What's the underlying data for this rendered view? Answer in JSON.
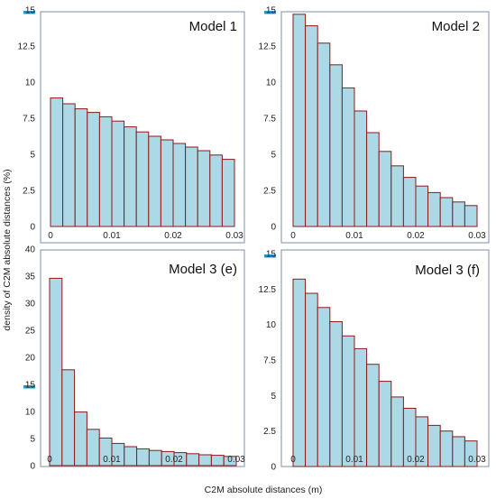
{
  "figure": {
    "ylabel": "density of C2M absolute distances (%)",
    "xlabel": "C2M absolute distances (m)"
  },
  "colors": {
    "bar_fill": "#add8e6",
    "bar_edge": "#8b1a1a",
    "frame": "#7f8fa6",
    "highlight_tick": "#1e9bd7"
  },
  "chart_data": [
    {
      "type": "bar",
      "title": "Model 1",
      "xlim": [
        0,
        0.03
      ],
      "ylim": [
        0,
        15
      ],
      "bin_edges": [
        0,
        0.002,
        0.004,
        0.006,
        0.008,
        0.01,
        0.012,
        0.014,
        0.016,
        0.018,
        0.02,
        0.022,
        0.024,
        0.026,
        0.028,
        0.03
      ],
      "values": [
        8.9,
        8.5,
        8.15,
        7.9,
        7.6,
        7.3,
        6.9,
        6.55,
        6.25,
        6.0,
        5.75,
        5.5,
        5.25,
        4.95,
        4.65
      ],
      "xticks": [
        "0",
        "0.01",
        "0.02",
        "0.03"
      ],
      "yticks": [
        "0",
        "2.5",
        "5",
        "7.5",
        "10",
        "12.5",
        "15"
      ],
      "highlighted_ytick": "15"
    },
    {
      "type": "bar",
      "title": "Model 2",
      "xlim": [
        0,
        0.03
      ],
      "ylim": [
        0,
        15
      ],
      "bin_edges": [
        0,
        0.002,
        0.004,
        0.006,
        0.008,
        0.01,
        0.012,
        0.014,
        0.016,
        0.018,
        0.02,
        0.022,
        0.024,
        0.026,
        0.028,
        0.03
      ],
      "values": [
        14.7,
        13.9,
        12.7,
        11.2,
        9.6,
        8.0,
        6.5,
        5.2,
        4.2,
        3.4,
        2.8,
        2.35,
        2.0,
        1.7,
        1.45
      ],
      "xticks": [
        "0",
        "0.01",
        "0.02",
        "0.03"
      ],
      "yticks": [
        "0",
        "2.5",
        "5",
        "7.5",
        "10",
        "12.5",
        "15"
      ],
      "highlighted_ytick": "15"
    },
    {
      "type": "bar",
      "title": "Model 3 (e)",
      "xlim": [
        0,
        0.03
      ],
      "ylim": [
        0,
        40
      ],
      "bin_edges": [
        0,
        0.002,
        0.004,
        0.006,
        0.008,
        0.01,
        0.012,
        0.014,
        0.016,
        0.018,
        0.02,
        0.022,
        0.024,
        0.026,
        0.028,
        0.03
      ],
      "values": [
        34.6,
        17.7,
        9.9,
        6.7,
        5.1,
        4.1,
        3.5,
        3.1,
        2.8,
        2.6,
        2.4,
        2.2,
        2.0,
        1.9,
        1.7
      ],
      "xticks": [
        "0",
        "0.01",
        "0.02",
        "0.03"
      ],
      "yticks": [
        "0",
        "5",
        "10",
        "15",
        "20",
        "25",
        "30",
        "35",
        "40"
      ],
      "highlighted_ytick": "15"
    },
    {
      "type": "bar",
      "title": "Model 3 (f)",
      "xlim": [
        0,
        0.03
      ],
      "ylim": [
        0,
        15
      ],
      "bin_edges": [
        0,
        0.002,
        0.004,
        0.006,
        0.008,
        0.01,
        0.012,
        0.014,
        0.016,
        0.018,
        0.02,
        0.022,
        0.024,
        0.026,
        0.028,
        0.03
      ],
      "values": [
        13.2,
        12.2,
        11.2,
        10.2,
        9.2,
        8.3,
        7.2,
        6.0,
        4.9,
        4.1,
        3.5,
        2.9,
        2.5,
        2.1,
        1.8
      ],
      "xticks": [
        "0",
        "0.01",
        "0.02",
        "0.03"
      ],
      "yticks": [
        "0",
        "2.5",
        "5",
        "7.5",
        "10",
        "12.5",
        "15"
      ],
      "highlighted_ytick": "15"
    }
  ]
}
